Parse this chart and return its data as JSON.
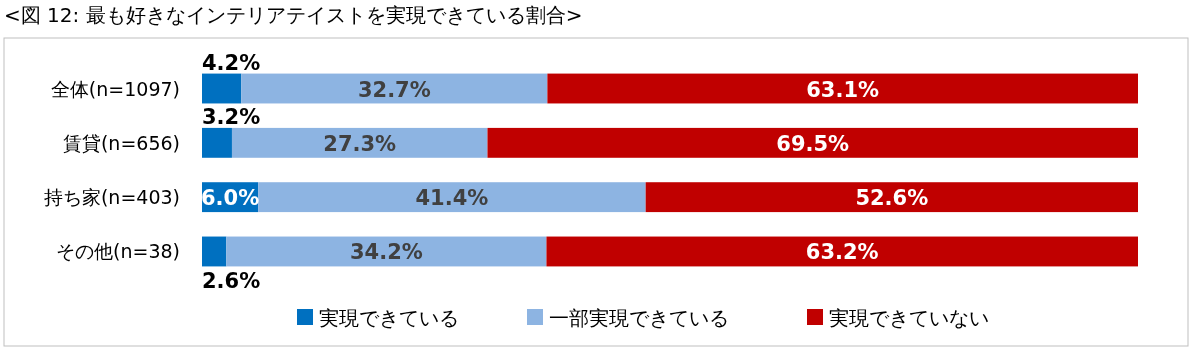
{
  "chart_data": {
    "type": "bar",
    "orientation": "horizontal",
    "stacked": true,
    "title": "<図 12: 最も好きなインテリアテイストを実現できている割合>",
    "categories": [
      "全体(n=1097)",
      "賃貸(n=656)",
      "持ち家(n=403)",
      "その他(n=38)"
    ],
    "series": [
      {
        "name": "実現できている",
        "color": "#0070c0",
        "values": [
          4.2,
          3.2,
          6.0,
          2.6
        ],
        "value_labels": [
          "4.2%",
          "3.2%",
          "6.0%",
          "2.6%"
        ]
      },
      {
        "name": "一部実現できている",
        "color": "#8db4e2",
        "values": [
          32.7,
          27.3,
          41.4,
          34.2
        ],
        "value_labels": [
          "32.7%",
          "27.3%",
          "41.4%",
          "34.2%"
        ]
      },
      {
        "name": "実現できていない",
        "color": "#c00000",
        "values": [
          63.1,
          69.5,
          52.6,
          63.2
        ],
        "value_labels": [
          "63.1%",
          "69.5%",
          "52.6%",
          "63.2%"
        ]
      }
    ],
    "legend": "bottom",
    "tick_labels": "y"
  }
}
